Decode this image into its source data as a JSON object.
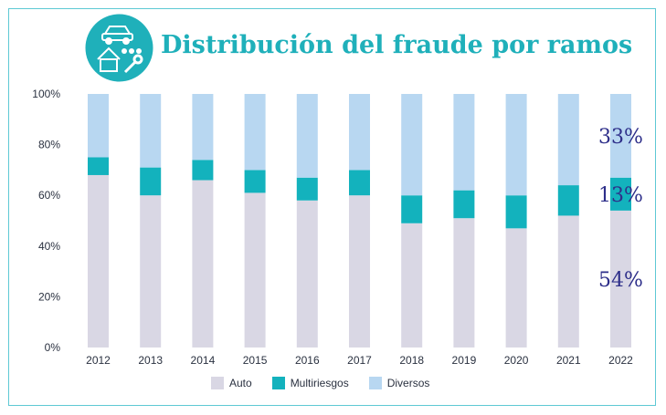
{
  "title": "Distribución del fraude por ramos",
  "icons": [
    "car-icon",
    "house-icon",
    "wrench-icon",
    "dots-icon"
  ],
  "colors": {
    "auto": "#d9d7e4",
    "multi": "#13b2bd",
    "diversos": "#b8d7f1",
    "accent": "#1fb0ba",
    "label": "#2e2f8a"
  },
  "chart_data": {
    "type": "bar",
    "stacked": true,
    "categories": [
      "2012",
      "2013",
      "2014",
      "2015",
      "2016",
      "2017",
      "2018",
      "2019",
      "2020",
      "2021",
      "2022"
    ],
    "series": [
      {
        "name": "Auto",
        "values": [
          68,
          60,
          66,
          61,
          58,
          60,
          49,
          51,
          47,
          52,
          54
        ]
      },
      {
        "name": "Multiriesgos",
        "values": [
          7,
          11,
          8,
          9,
          9,
          10,
          11,
          11,
          13,
          12,
          13
        ]
      },
      {
        "name": "Diversos",
        "values": [
          25,
          29,
          26,
          30,
          33,
          30,
          40,
          38,
          40,
          36,
          33
        ]
      }
    ],
    "y_ticks": [
      "0%",
      "20%",
      "40%",
      "60%",
      "80%",
      "100%"
    ],
    "ylim": [
      0,
      100
    ],
    "annotations": [
      {
        "category": "2022",
        "series": "Diversos",
        "text": "33%"
      },
      {
        "category": "2022",
        "series": "Multiriesgos",
        "text": "13%"
      },
      {
        "category": "2022",
        "series": "Auto",
        "text": "54%"
      }
    ],
    "legend": [
      "Auto",
      "Multiriesgos",
      "Diversos"
    ],
    "legend_position": "bottom"
  }
}
